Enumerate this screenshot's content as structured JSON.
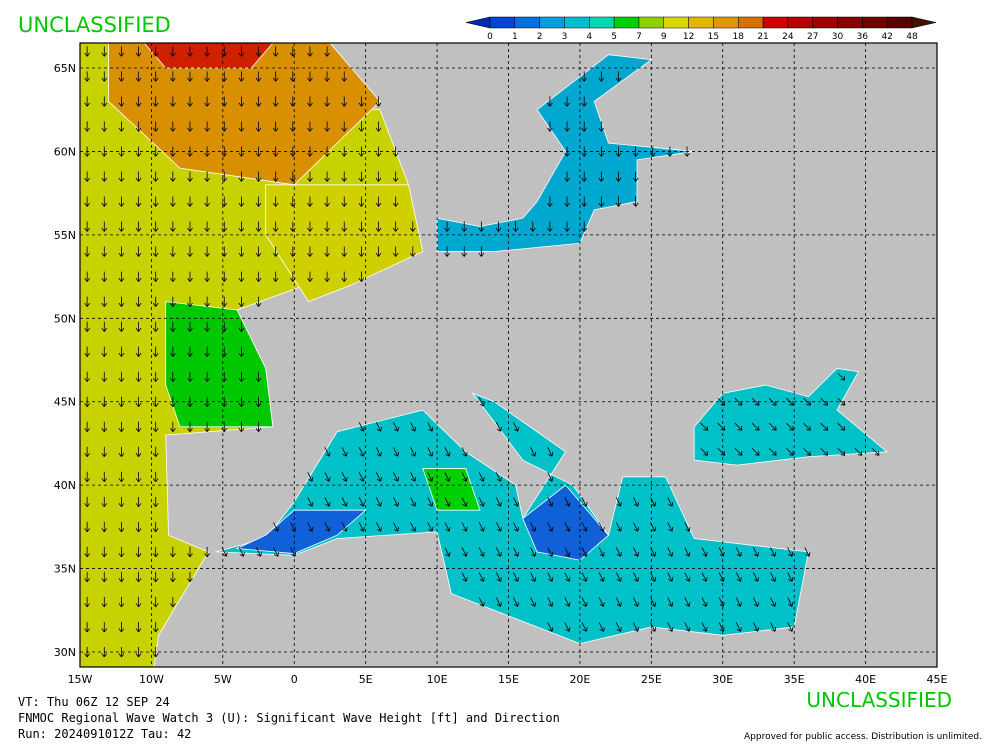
{
  "header": {
    "classification_top": "UNCLASSIFIED"
  },
  "colorbar": {
    "ticks": [
      0,
      1,
      2,
      3,
      4,
      5,
      7,
      9,
      12,
      15,
      18,
      21,
      24,
      27,
      30,
      36,
      42,
      48
    ],
    "colors": [
      "#0028b4",
      "#0044d8",
      "#0070e0",
      "#00a0e0",
      "#00c0d0",
      "#00d8b0",
      "#00d000",
      "#90d000",
      "#d8d800",
      "#e0b800",
      "#e09800",
      "#d87000",
      "#d00000",
      "#b80000",
      "#a00000",
      "#880000",
      "#700000",
      "#580000",
      "#401000"
    ]
  },
  "map": {
    "lonlim": [
      -15,
      45
    ],
    "latlim": [
      29.1,
      66.5
    ],
    "lon_ticks": [
      {
        "value": -15,
        "label": "15W"
      },
      {
        "value": -10,
        "label": "10W"
      },
      {
        "value": -5,
        "label": "5W"
      },
      0,
      {
        "value": 5,
        "label": "5E"
      },
      {
        "value": 10,
        "label": "10E"
      },
      {
        "value": 15,
        "label": "15E"
      },
      {
        "value": 20,
        "label": "20E"
      },
      {
        "value": 25,
        "label": "25E"
      },
      {
        "value": 30,
        "label": "30E"
      },
      {
        "value": 35,
        "label": "35E"
      },
      {
        "value": 40,
        "label": "40E"
      },
      {
        "value": 45,
        "label": "45E"
      }
    ],
    "lat_ticks": [
      {
        "value": 30,
        "label": "30N"
      },
      {
        "value": 35,
        "label": "35N"
      },
      {
        "value": 40,
        "label": "40N"
      },
      {
        "value": 45,
        "label": "45N"
      },
      {
        "value": 50,
        "label": "50N"
      },
      {
        "value": 55,
        "label": "55N"
      },
      {
        "value": 60,
        "label": "60N"
      },
      {
        "value": 65,
        "label": "65N"
      }
    ]
  },
  "footer": {
    "classification_bottom": "UNCLASSIFIED",
    "lines": [
      "VT: Thu 06Z 12 SEP 24",
      "FNMOC Regional Wave Watch 3 (U): Significant Wave Height [ft] and Direction",
      "Run: 2024091012Z Tau: 42"
    ],
    "release": "Approved for public access. Distribution is unlimited."
  }
}
